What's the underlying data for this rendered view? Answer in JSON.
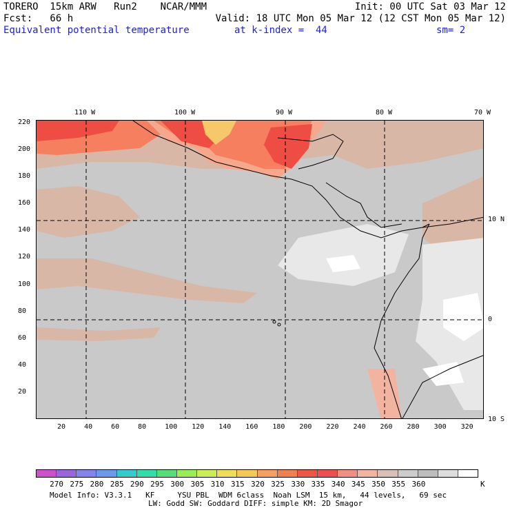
{
  "header": {
    "model": "TORERO  15km ARW   Run2    NCAR/MMM",
    "init": "Init: 00 UTC Sat 03 Mar 12",
    "fcst": "Fcst:   66 h",
    "valid": "Valid: 18 UTC Mon 05 Mar 12 (12 CST Mon 05 Mar 12)",
    "field": "Equivalent potential temperature",
    "level": "at k-index =  44",
    "smooth": "sm= 2"
  },
  "map": {
    "lon_labels": [
      "110 W",
      "100 W",
      "90 W",
      "80 W",
      "70 W"
    ],
    "lat_labels": [
      "10 N",
      "0",
      "10 S"
    ],
    "x_ticks": [
      "20",
      "40",
      "60",
      "80",
      "100",
      "120",
      "140",
      "160",
      "180",
      "200",
      "220",
      "240",
      "260",
      "280",
      "300",
      "320"
    ],
    "y_ticks": [
      "20",
      "40",
      "60",
      "80",
      "100",
      "120",
      "140",
      "160",
      "180",
      "200",
      "220"
    ],
    "colors": {
      "background": "#c9c9c9",
      "land_light": "#e8e8e8",
      "white": "#ffffff",
      "tan": "#d9b7a7",
      "salmon": "#f6a88d",
      "orange": "#f57f5f",
      "red": "#ee4d44",
      "yellow": "#f7c86a"
    }
  },
  "colorbar": {
    "colors": [
      "#cc52cc",
      "#9966dd",
      "#8484ee",
      "#6b99ee",
      "#33cccc",
      "#33ddaa",
      "#55dd77",
      "#99ee55",
      "#ccee55",
      "#eedd55",
      "#f5c855",
      "#f5a060",
      "#f08050",
      "#ee5545",
      "#ee5050",
      "#f09080",
      "#f2b4a0",
      "#d9c0b4",
      "#cccccc",
      "#bdbdbd",
      "#dddddd",
      "#ffffff"
    ],
    "labels": [
      "270",
      "275",
      "280",
      "285",
      "290",
      "295",
      "300",
      "305",
      "310",
      "315",
      "320",
      "325",
      "330",
      "335",
      "340",
      "345",
      "350",
      "355",
      "360"
    ],
    "unit": "K"
  },
  "footer": {
    "line1": "Model Info: V3.3.1   KF     YSU PBL  WDM 6class  Noah LSM  15 km,   44 levels,   69 sec",
    "line2": "LW: Godd SW: Goddard DIFF: simple KM: 2D Smagor"
  }
}
